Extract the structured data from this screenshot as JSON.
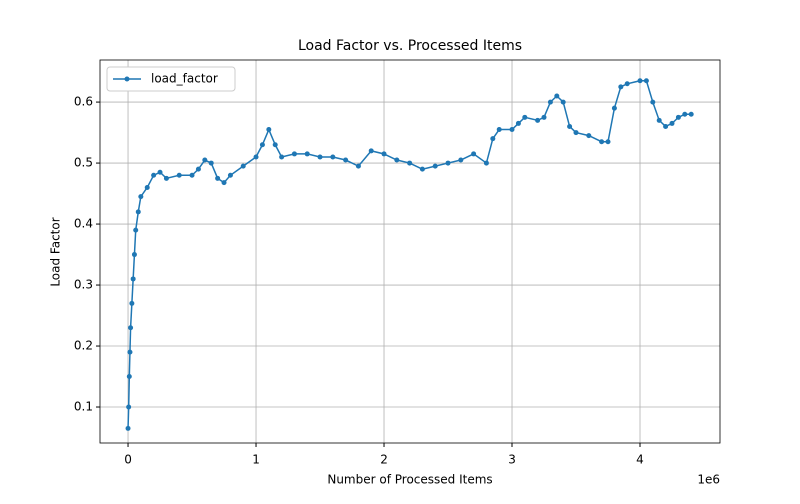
{
  "chart_data": {
    "type": "line",
    "title": "Load Factor vs. Processed Items",
    "x_label": "Number of Processed Items",
    "y_label": "Load Factor",
    "x_offset_label": "1e6",
    "x": [
      0,
      5000,
      10000,
      15000,
      20000,
      30000,
      40000,
      50000,
      60000,
      80000,
      100000,
      150000,
      200000,
      250000,
      300000,
      400000,
      500000,
      550000,
      600000,
      650000,
      700000,
      750000,
      800000,
      900000,
      1000000,
      1050000,
      1100000,
      1150000,
      1200000,
      1300000,
      1400000,
      1500000,
      1600000,
      1700000,
      1800000,
      1900000,
      2000000,
      2100000,
      2200000,
      2300000,
      2400000,
      2500000,
      2600000,
      2700000,
      2800000,
      2850000,
      2900000,
      3000000,
      3050000,
      3100000,
      3200000,
      3250000,
      3300000,
      3350000,
      3400000,
      3450000,
      3500000,
      3600000,
      3700000,
      3750000,
      3800000,
      3850000,
      3900000,
      4000000,
      4050000,
      4100000,
      4150000,
      4200000,
      4250000,
      4300000,
      4350000,
      4400000
    ],
    "series": [
      {
        "name": "load_factor",
        "color": "#1f77b4",
        "values": [
          0.065,
          0.1,
          0.15,
          0.19,
          0.23,
          0.27,
          0.31,
          0.35,
          0.39,
          0.42,
          0.445,
          0.46,
          0.48,
          0.485,
          0.475,
          0.48,
          0.48,
          0.49,
          0.505,
          0.5,
          0.475,
          0.468,
          0.48,
          0.495,
          0.51,
          0.53,
          0.555,
          0.53,
          0.51,
          0.515,
          0.515,
          0.51,
          0.51,
          0.505,
          0.495,
          0.52,
          0.515,
          0.505,
          0.5,
          0.49,
          0.495,
          0.5,
          0.505,
          0.515,
          0.5,
          0.54,
          0.555,
          0.555,
          0.565,
          0.575,
          0.57,
          0.575,
          0.6,
          0.61,
          0.6,
          0.56,
          0.55,
          0.545,
          0.535,
          0.535,
          0.59,
          0.625,
          0.63,
          0.635,
          0.635,
          0.6,
          0.57,
          0.56,
          0.565,
          0.575,
          0.58,
          0.58
        ]
      }
    ],
    "xlim": [
      -219000,
      4625000
    ],
    "ylim": [
      0.041,
      0.669
    ],
    "xticks": [
      0,
      {
        "value": 1000000,
        "label": "1"
      },
      {
        "value": 2000000,
        "label": "2"
      },
      {
        "value": 3000000,
        "label": "3"
      },
      {
        "value": 4000000,
        "label": "4"
      }
    ],
    "yticks": [
      0.1,
      0.2,
      0.3,
      0.4,
      0.5,
      0.6
    ],
    "grid": true,
    "legend": "upper-left"
  }
}
